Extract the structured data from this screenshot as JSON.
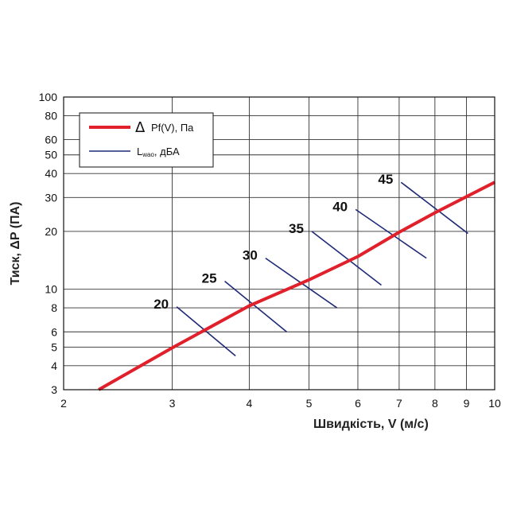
{
  "chart_data": {
    "type": "line",
    "x_scale": "log",
    "y_scale": "log",
    "xlim": [
      2,
      10
    ],
    "ylim": [
      3,
      100
    ],
    "grid": true,
    "xlabel": "Швидкість, V (м/с)",
    "ylabel": "Тиск, ΔP (ПА)",
    "x_ticks": [
      2,
      3,
      4,
      5,
      6,
      7,
      8,
      9,
      10
    ],
    "y_ticks": [
      3,
      4,
      5,
      6,
      8,
      10,
      20,
      30,
      40,
      50,
      60,
      80,
      100
    ],
    "legend": {
      "position": "top-left",
      "pressure_symbol": "Δ",
      "pressure_label": "Pf(V), Па",
      "noise_label_main": "L",
      "noise_label_sub": "wao",
      "noise_label_rest": ", дБА"
    },
    "pressure_curve": {
      "color": "#e0202a",
      "points": [
        [
          2.28,
          3.0
        ],
        [
          3.0,
          4.95
        ],
        [
          4.0,
          8.2
        ],
        [
          5.0,
          11.2
        ],
        [
          6.0,
          14.8
        ],
        [
          7.0,
          19.8
        ],
        [
          8.0,
          25.0
        ],
        [
          10.0,
          36.0
        ]
      ]
    },
    "noise_lines": {
      "color": "#1f2a78",
      "items": [
        {
          "label": "20",
          "start": [
            3.05,
            8.1
          ],
          "end": [
            3.8,
            4.5
          ]
        },
        {
          "label": "25",
          "start": [
            3.65,
            11.0
          ],
          "end": [
            4.6,
            6.0
          ]
        },
        {
          "label": "30",
          "start": [
            4.25,
            14.5
          ],
          "end": [
            5.55,
            8.0
          ]
        },
        {
          "label": "35",
          "start": [
            5.05,
            20.0
          ],
          "end": [
            6.55,
            10.5
          ]
        },
        {
          "label": "40",
          "start": [
            5.95,
            26.0
          ],
          "end": [
            7.75,
            14.5
          ]
        },
        {
          "label": "45",
          "start": [
            7.05,
            36.0
          ],
          "end": [
            9.05,
            19.5
          ]
        }
      ]
    }
  }
}
